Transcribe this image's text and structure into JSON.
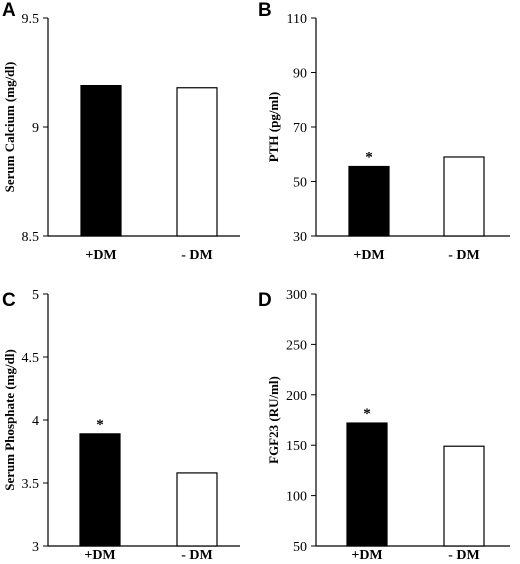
{
  "chart_data": [
    {
      "panel": "A",
      "type": "bar",
      "categories": [
        "+DM",
        "- DM"
      ],
      "values": [
        9.19,
        9.18
      ],
      "ylabel": "Serum Calcium (mg/dl)",
      "ylim": [
        8.5,
        9.5
      ],
      "yticks": [
        "8.5",
        "9",
        "9.5"
      ],
      "significance": [
        "",
        ""
      ],
      "fills": [
        "#000000",
        "#ffffff"
      ]
    },
    {
      "panel": "B",
      "type": "bar",
      "categories": [
        "+DM",
        "- DM"
      ],
      "values": [
        55.5,
        59
      ],
      "ylabel": "PTH (pg/ml)",
      "ylim": [
        30,
        110
      ],
      "yticks": [
        "30",
        "50",
        "70",
        "90",
        "110"
      ],
      "significance": [
        "*",
        ""
      ],
      "fills": [
        "#000000",
        "#ffffff"
      ]
    },
    {
      "panel": "C",
      "type": "bar",
      "categories": [
        "+DM",
        "- DM"
      ],
      "values": [
        3.89,
        3.58
      ],
      "ylabel": "Serum Phosphate (mg/dl)",
      "ylim": [
        3,
        5
      ],
      "yticks": [
        "3",
        "3.5",
        "4",
        "4.5",
        "5"
      ],
      "significance": [
        "*",
        ""
      ],
      "fills": [
        "#000000",
        "#ffffff"
      ]
    },
    {
      "panel": "D",
      "type": "bar",
      "categories": [
        "+DM",
        "- DM"
      ],
      "values": [
        172,
        149
      ],
      "ylabel": "FGF23 (RU/ml)",
      "ylim": [
        50,
        300
      ],
      "yticks": [
        "50",
        "100",
        "150",
        "200",
        "250",
        "300"
      ],
      "significance": [
        "*",
        ""
      ],
      "fills": [
        "#000000",
        "#ffffff"
      ]
    }
  ]
}
